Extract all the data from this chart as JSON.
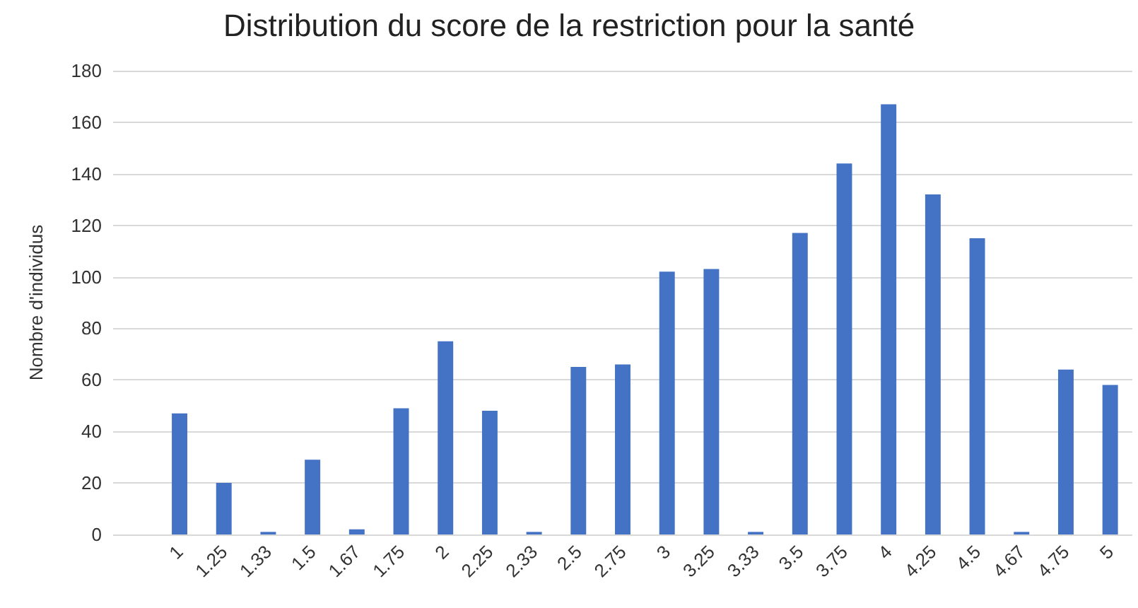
{
  "chart_data": {
    "type": "bar",
    "title": "Distribution du score de la restriction pour la santé",
    "ylabel": "Nombre d'individus",
    "categories": [
      null,
      "1",
      "1.25",
      "1.33",
      "1.5",
      "1.67",
      "1.75",
      "2",
      "2.25",
      "2.33",
      "2.5",
      "2.75",
      "3",
      "3.25",
      "3.33",
      "3.5",
      "3.75",
      "4",
      "4.25",
      "4.5",
      "4.67",
      "4.75",
      "5"
    ],
    "values": [
      null,
      47,
      20,
      1,
      29,
      2,
      49,
      75,
      48,
      1,
      65,
      66,
      102,
      103,
      1,
      117,
      144,
      167,
      132,
      115,
      1,
      64,
      58
    ],
    "color": "#4472c4",
    "ylim": [
      0,
      180
    ],
    "yticks": [
      0,
      20,
      40,
      60,
      80,
      100,
      120,
      140,
      160,
      180
    ],
    "grid": "y"
  }
}
